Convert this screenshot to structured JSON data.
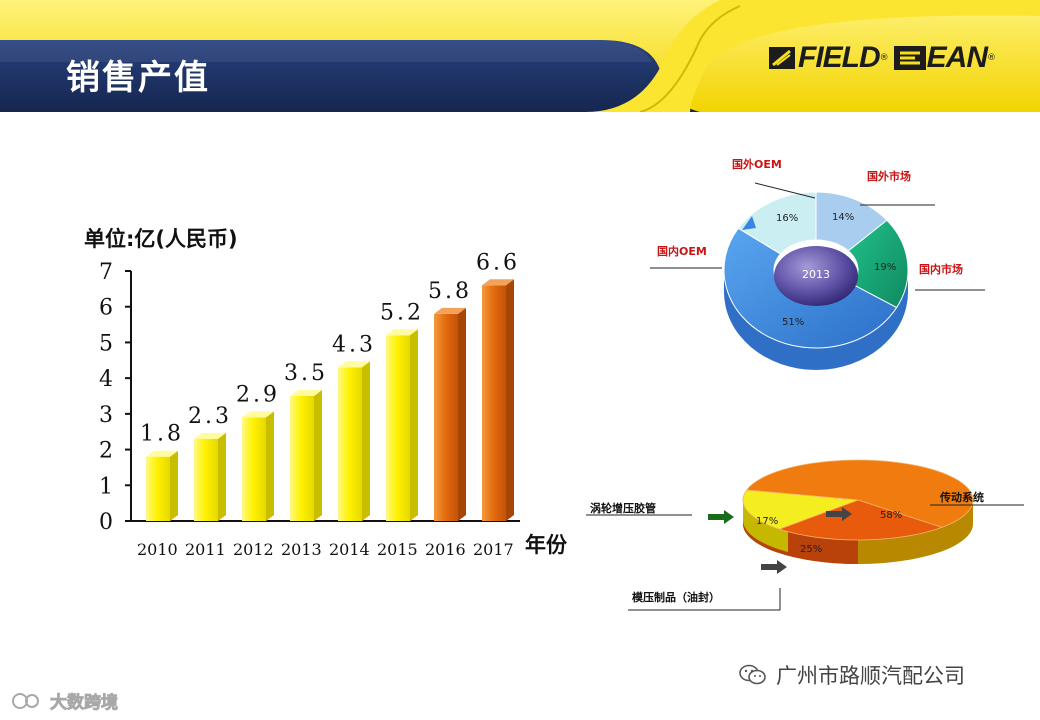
{
  "header": {
    "title": "销售产值",
    "logo_left": "FIELD",
    "logo_right": "EAN",
    "registered_mark": "®"
  },
  "bar_chart": {
    "unit_label": "单位:亿(人民币)",
    "x_axis_title": "年份"
  },
  "chart_data": [
    {
      "type": "bar",
      "title": "",
      "ylabel": "单位:亿(人民币)",
      "xlabel": "年份",
      "categories": [
        "2010",
        "2011",
        "2012",
        "2013",
        "2014",
        "2015",
        "2016",
        "2017"
      ],
      "values": [
        1.8,
        2.3,
        2.9,
        3.5,
        4.3,
        5.2,
        5.8,
        6.6
      ],
      "value_labels": [
        "1.8",
        "2.3",
        "2.9",
        "3.5",
        "4.3",
        "5.2",
        "5.8",
        "6.6"
      ],
      "ylim": [
        0,
        7
      ],
      "yticks": [
        "0",
        "1",
        "2",
        "3",
        "4",
        "5",
        "6",
        "7"
      ],
      "colors": [
        "#f2e600",
        "#f2e600",
        "#f2e600",
        "#f2e600",
        "#f2e600",
        "#f2e600",
        "#e0660a",
        "#e0660a"
      ],
      "grid": false
    },
    {
      "type": "pie",
      "style": "donut-3d",
      "center_label": "2013",
      "slices": [
        {
          "label": "国外市场",
          "value": 14,
          "text": "14%",
          "color": "#a9cdef"
        },
        {
          "label": "国内市场",
          "value": 19,
          "text": "19%",
          "color": "#1aa878"
        },
        {
          "label": "国内OEM",
          "value": 51,
          "text": "51%",
          "color": "#3a86de"
        },
        {
          "label": "国外OEM",
          "value": 16,
          "text": "16%",
          "color": "#cbeef2"
        }
      ]
    },
    {
      "type": "pie",
      "style": "pie-3d",
      "slices": [
        {
          "label": "传动系统",
          "value": 58,
          "text": "58%",
          "color": "#f07c10"
        },
        {
          "label": "模压制品(油封)",
          "value": 25,
          "text": "25%",
          "color": "#e85a0c"
        },
        {
          "label": "涡轮增压胶管",
          "value": 17,
          "text": "17%",
          "color": "#f4ee20"
        }
      ],
      "callouts": [
        "涡轮增压胶管",
        "模压制品（油封）",
        "传动系统"
      ]
    }
  ],
  "footer": {
    "wechat_name": "广州市路顺汽配公司",
    "watermark": "大数跨境"
  },
  "colors": {
    "header_navy": "#1c2f63",
    "header_yellow": "#f7e01a",
    "bar_yellow": "#f2e600",
    "bar_orange": "#e0660a",
    "label_red": "#c81414"
  }
}
